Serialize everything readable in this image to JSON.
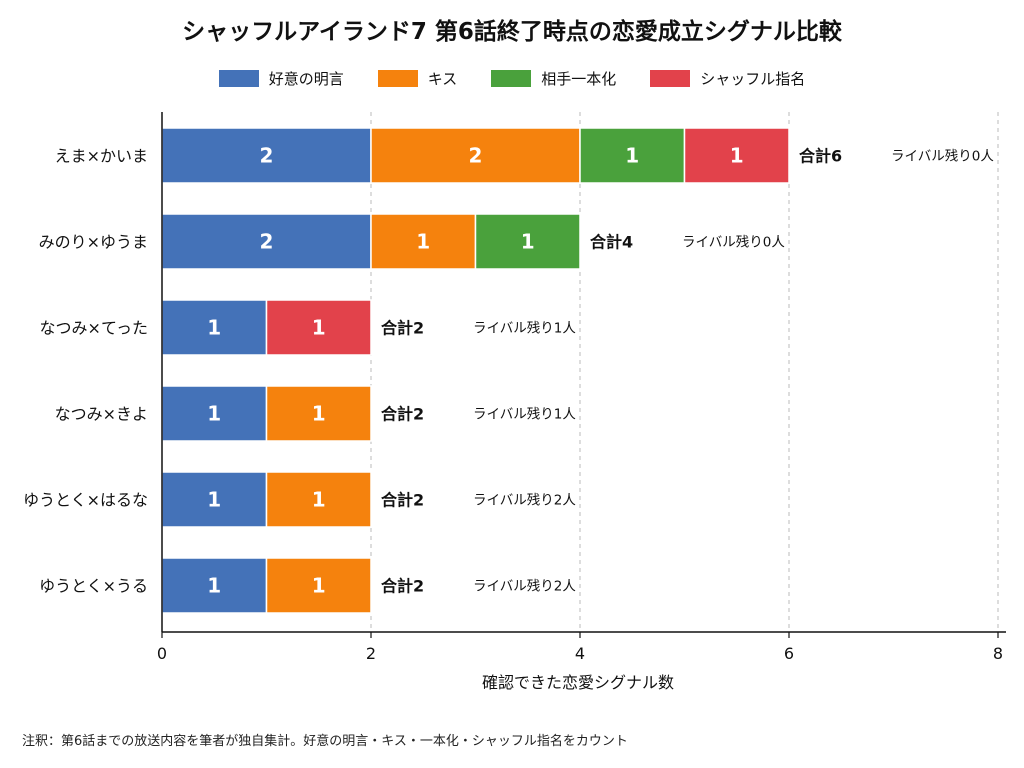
{
  "chart_data": {
    "type": "bar",
    "orientation": "horizontal",
    "stacked": true,
    "title": "シャッフルアイランド7 第6話終了時点の恋愛成立シグナル比較",
    "xlabel": "確認できた恋愛シグナル数",
    "ylabel": "",
    "xlim": [
      0,
      8
    ],
    "xticks": [
      0,
      2,
      4,
      6,
      8
    ],
    "grid": "x-dashed",
    "legend_position": "top",
    "categories": [
      "えま×かいま",
      "みのり×ゆうま",
      "なつみ×てった",
      "なつみ×きよ",
      "ゆうとく×はるな",
      "ゆうとく×うる"
    ],
    "series": [
      {
        "name": "好意の明言",
        "color": "#4472b8",
        "values": [
          2,
          2,
          1,
          1,
          1,
          1
        ]
      },
      {
        "name": "キス",
        "color": "#f5820d",
        "values": [
          2,
          1,
          0,
          1,
          1,
          1
        ]
      },
      {
        "name": "相手一本化",
        "color": "#4aa13c",
        "values": [
          1,
          1,
          0,
          0,
          0,
          0
        ]
      },
      {
        "name": "シャッフル指名",
        "color": "#e2424b",
        "values": [
          1,
          0,
          1,
          0,
          0,
          0
        ]
      }
    ],
    "totals": [
      6,
      4,
      2,
      2,
      2,
      2
    ],
    "total_labels": [
      "合計6",
      "合計4",
      "合計2",
      "合計2",
      "合計2",
      "合計2"
    ],
    "rival_labels": [
      "ライバル残り0人",
      "ライバル残り0人",
      "ライバル残り1人",
      "ライバル残り1人",
      "ライバル残り2人",
      "ライバル残り2人"
    ]
  },
  "footnote": "注釈：第6話までの放送内容を筆者が独自集計。好意の明言・キス・一本化・シャッフル指名をカウント"
}
